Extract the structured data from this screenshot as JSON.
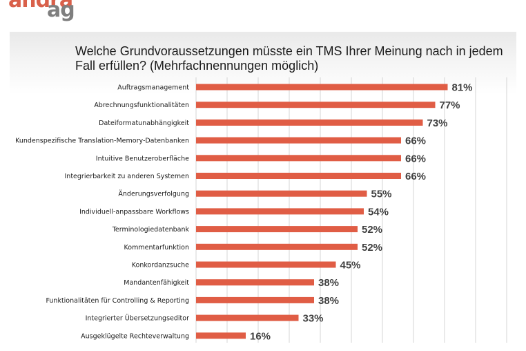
{
  "logo": {
    "line1": "andra",
    "line2": "ag"
  },
  "colors": {
    "bar": "#e05d45",
    "grid": "#d4d4d4",
    "brand_orange": "#d9604a",
    "brand_gray": "#7f7f7f"
  },
  "chart_data": {
    "type": "bar",
    "orientation": "horizontal",
    "title": "Welche Grundvoraussetzungen müsste ein TMS Ihrer Meinung nach in jedem Fall erfüllen? (Mehrfachnennungen möglich)",
    "xlabel": "",
    "ylabel": "",
    "xlim": [
      0,
      100
    ],
    "grid": true,
    "legend": "none",
    "categories": [
      "Auftragsmanagement",
      "Abrechnungsfunktionalitäten",
      "Dateiformatunabhängigkeit",
      "Kundenspezifische Translation-Memory-Datenbanken",
      "Intuitive Benutzeroberfläche",
      "Integrierbarkeit zu anderen Systemen",
      "Änderungsverfolgung",
      "Individuell-anpassbare Workflows",
      "Terminologiedatenbank",
      "Kommentarfunktion",
      "Konkordanzsuche",
      "Mandantenfähigkeit",
      "Funktionalitäten für Controlling & Reporting",
      "Integrierter Übersetzungseditor",
      "Ausgeklügelte Rechteverwaltung"
    ],
    "values": [
      81,
      77,
      73,
      66,
      66,
      66,
      55,
      54,
      52,
      52,
      45,
      38,
      38,
      33,
      16
    ],
    "value_labels": [
      "81%",
      "77%",
      "73%",
      "66%",
      "66%",
      "66%",
      "55%",
      "54%",
      "52%",
      "52%",
      "45%",
      "38%",
      "38%",
      "33%",
      "16%"
    ]
  }
}
